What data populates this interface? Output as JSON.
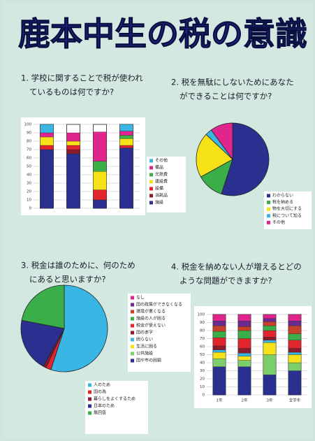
{
  "poster_title": "鹿本中生の税の意識",
  "chart_data": [
    {
      "type": "stacked-bar",
      "title": [
        "1. 学校に関することで税が使われ",
        "ているものは何ですか?"
      ],
      "categories": [
        null,
        null,
        null,
        null
      ],
      "ylim": [
        0,
        100
      ],
      "yticks": [
        0,
        10,
        20,
        30,
        40,
        50,
        60,
        70,
        80,
        90,
        100
      ],
      "series": [
        {
          "name": "施設",
          "color": "#2b2f8f",
          "values": [
            70,
            65,
            10,
            72
          ]
        },
        {
          "name": "消耗品",
          "color": "#8e1b2b",
          "values": [
            0,
            5,
            0,
            0
          ]
        },
        {
          "name": "設備",
          "color": "#e2242c",
          "values": [
            5,
            5,
            12,
            3
          ]
        },
        {
          "name": "建設費",
          "color": "#f7e21a",
          "values": [
            10,
            5,
            22,
            8
          ]
        },
        {
          "name": "光熱費",
          "color": "#3aae49",
          "values": [
            0,
            0,
            12,
            4
          ]
        },
        {
          "name": "備品",
          "color": "#e0258f",
          "values": [
            5,
            10,
            35,
            5
          ]
        },
        {
          "name": "その他",
          "color": "#39b6e3",
          "values": [
            10,
            0,
            0,
            8
          ]
        }
      ]
    },
    {
      "type": "pie",
      "title": [
        "2. 税を無駄にしないためにあなた",
        "ができることは何ですか?"
      ],
      "categories": [
        "わからない",
        "税を納める",
        "物を大切にする",
        "税について知る",
        "その他"
      ],
      "colors": [
        "#2b2f8f",
        "#3aae49",
        "#f7e21a",
        "#39b6e3",
        "#e0258f"
      ],
      "values": [
        55,
        12,
        20,
        3,
        10
      ]
    },
    {
      "type": "pie",
      "title": [
        "3. 税金は誰のために、何のため",
        "にあると思いますか?"
      ],
      "categories": [
        "人のため",
        "国の為",
        "暮らしをよくするため",
        "日本のため",
        "無回答"
      ],
      "colors": [
        "#39b6e3",
        "#e2242c",
        "#8e1b2b",
        "#2b2f8f",
        "#3aae49"
      ],
      "values": [
        55,
        2,
        1,
        20,
        22
      ]
    },
    {
      "type": "stacked-bar",
      "title": [
        "4. 税金を納めない人が増えるとどの",
        "ような問題ができますか?"
      ],
      "categories": [
        "1年",
        "2年",
        "3年",
        "全学年"
      ],
      "ylim": [
        0,
        100
      ],
      "yticks": [
        0,
        10,
        20,
        30,
        40,
        50,
        60,
        70,
        80,
        90,
        100
      ],
      "series": [
        {
          "name": "国や市の困窮",
          "color": "#2b2f8f",
          "values": [
            35,
            35,
            25,
            30
          ]
        },
        {
          "name": "公共施設",
          "color": "#7ccf6a",
          "values": [
            10,
            8,
            25,
            10
          ]
        },
        {
          "name": "生活に困る",
          "color": "#f7e21a",
          "values": [
            8,
            5,
            15,
            10
          ]
        },
        {
          "name": "困らない",
          "color": "#39b6e3",
          "values": [
            3,
            4,
            3,
            3
          ]
        },
        {
          "name": "国の赤字",
          "color": "#8e1b2b",
          "values": [
            5,
            6,
            4,
            5
          ]
        },
        {
          "name": "税金が使えない",
          "color": "#e2242c",
          "values": [
            10,
            12,
            8,
            10
          ]
        },
        {
          "name": "施設の人が困る",
          "color": "#3aae49",
          "values": [
            8,
            10,
            6,
            8
          ]
        },
        {
          "name": "環境が悪くなる",
          "color": "#c8402a",
          "values": [
            7,
            5,
            5,
            10
          ]
        },
        {
          "name": "国の政策ができなくなる",
          "color": "#6a2a8f",
          "values": [
            6,
            7,
            4,
            6
          ]
        },
        {
          "name": "なし",
          "color": "#e0258f",
          "values": [
            8,
            8,
            5,
            8
          ]
        }
      ]
    }
  ]
}
